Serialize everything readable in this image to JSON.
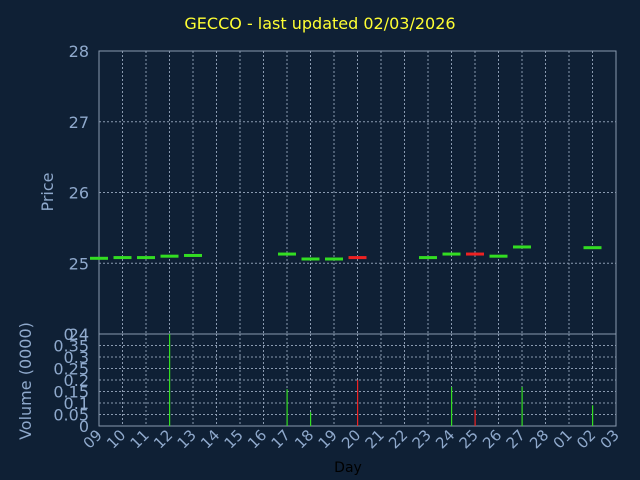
{
  "chart_data": [
    {
      "type": "candlestick",
      "title": "GECCO - last updated 02/03/2026",
      "ylabel": "Price",
      "ylim": [
        24,
        28
      ],
      "yticks": [
        24,
        25,
        26,
        27,
        28
      ],
      "grid": true,
      "categories": [
        "09",
        "10",
        "11",
        "12",
        "13",
        "14",
        "15",
        "16",
        "17",
        "18",
        "19",
        "20",
        "21",
        "22",
        "23",
        "24",
        "25",
        "26",
        "27",
        "28",
        "01",
        "02",
        "03"
      ],
      "candles": [
        {
          "day": "09",
          "value": 25.07,
          "direction": "up"
        },
        {
          "day": "10",
          "value": 25.08,
          "direction": "up"
        },
        {
          "day": "11",
          "value": 25.08,
          "direction": "up"
        },
        {
          "day": "12",
          "value": 25.1,
          "direction": "up"
        },
        {
          "day": "13",
          "value": 25.11,
          "direction": "up"
        },
        {
          "day": "17",
          "value": 25.13,
          "direction": "up"
        },
        {
          "day": "18",
          "value": 25.06,
          "direction": "up"
        },
        {
          "day": "19",
          "value": 25.06,
          "direction": "up"
        },
        {
          "day": "20",
          "value": 25.08,
          "direction": "down"
        },
        {
          "day": "23",
          "value": 25.08,
          "direction": "up"
        },
        {
          "day": "24",
          "value": 25.13,
          "direction": "up"
        },
        {
          "day": "25",
          "value": 25.13,
          "direction": "down"
        },
        {
          "day": "26",
          "value": 25.1,
          "direction": "up"
        },
        {
          "day": "27",
          "value": 25.23,
          "direction": "up"
        },
        {
          "day": "02",
          "value": 25.22,
          "direction": "up"
        }
      ]
    },
    {
      "type": "bar",
      "ylabel": "Volume (0000)",
      "xlabel": "Day",
      "ylim": [
        0,
        0.4
      ],
      "yticks": [
        "0",
        "0.05",
        "0.1",
        "0.15",
        "0.2",
        "0.25",
        "0.3",
        "0.35",
        "0.4"
      ],
      "grid": true,
      "categories": [
        "09",
        "10",
        "11",
        "12",
        "13",
        "14",
        "15",
        "16",
        "17",
        "18",
        "19",
        "20",
        "21",
        "22",
        "23",
        "24",
        "25",
        "26",
        "27",
        "28",
        "01",
        "02",
        "03"
      ],
      "bars": [
        {
          "day": "12",
          "value": 0.4,
          "direction": "up"
        },
        {
          "day": "17",
          "value": 0.16,
          "direction": "up"
        },
        {
          "day": "18",
          "value": 0.06,
          "direction": "up"
        },
        {
          "day": "20",
          "value": 0.2,
          "direction": "down"
        },
        {
          "day": "24",
          "value": 0.17,
          "direction": "up"
        },
        {
          "day": "25",
          "value": 0.07,
          "direction": "down"
        },
        {
          "day": "27",
          "value": 0.17,
          "direction": "up"
        },
        {
          "day": "02",
          "value": 0.09,
          "direction": "up"
        }
      ]
    }
  ],
  "colors": {
    "background": "#0f2035",
    "plot_background": "#0f2035",
    "grid": "#8a9ab0",
    "axis_text": "#8fa9cc",
    "title": "#ffff33",
    "up": "#33dd22",
    "down": "#ee2222",
    "xlabel": "#000000"
  }
}
